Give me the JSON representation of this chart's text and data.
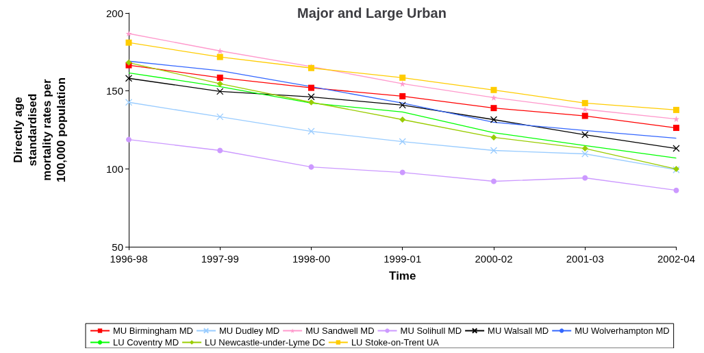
{
  "chart_data": {
    "type": "line",
    "title": "Major and Large Urban",
    "xlabel": "Time",
    "ylabel": "Directly age\nstandardised\nmortality rates per\n100,000 population",
    "categories": [
      "1996-98",
      "1997-99",
      "1998-00",
      "1999-01",
      "2000-02",
      "2001-03",
      "2002-04"
    ],
    "ylim": [
      50,
      200
    ],
    "yticks": [
      50,
      100,
      150,
      200
    ],
    "grid": false,
    "legend": "bottom",
    "series": [
      {
        "name": "MU Birmingham MD",
        "color": "#ff0000",
        "marker": "square",
        "values": [
          166.5,
          158.5,
          152,
          146.6,
          139,
          134,
          126.3
        ]
      },
      {
        "name": "MU Dudley MD",
        "color": "#99ccff",
        "marker": "cross",
        "values": [
          142.7,
          133.4,
          124.1,
          117.5,
          111.8,
          109.6,
          99.4
        ]
      },
      {
        "name": "MU Sandwell MD",
        "color": "#ff99cc",
        "marker": "star",
        "values": [
          186.8,
          175.7,
          165.6,
          154.6,
          145.7,
          138.2,
          132
        ]
      },
      {
        "name": "MU Solihull MD",
        "color": "#cc99ff",
        "marker": "circle",
        "values": [
          118.8,
          111.8,
          101.2,
          97.7,
          92,
          94.2,
          86.2
        ]
      },
      {
        "name": "MU Walsall MD",
        "color": "#000000",
        "marker": "cross",
        "values": [
          158.1,
          149.7,
          146.2,
          140.9,
          131.6,
          121.9,
          113.1
        ]
      },
      {
        "name": "MU Wolverhampton MD",
        "color": "#3366ff",
        "marker": "none",
        "values": [
          169.1,
          163,
          152.8,
          142.2,
          129.9,
          124.6,
          119.7
        ]
      },
      {
        "name": "LU Coventry MD",
        "color": "#00ff00",
        "marker": "none",
        "values": [
          161.6,
          152.8,
          142.2,
          136.5,
          123.2,
          114.9,
          106.9
        ]
      },
      {
        "name": "LU Newcastle-under-Lyme DC",
        "color": "#99cc00",
        "marker": "diamond",
        "values": [
          168.2,
          154.6,
          142.7,
          131.6,
          120.2,
          113.1,
          99.9
        ]
      },
      {
        "name": "LU Stoke-on-Trent UA",
        "color": "#ffcc00",
        "marker": "square",
        "values": [
          181,
          171.8,
          164.7,
          158.5,
          150.6,
          142.2,
          137.8
        ]
      }
    ]
  }
}
